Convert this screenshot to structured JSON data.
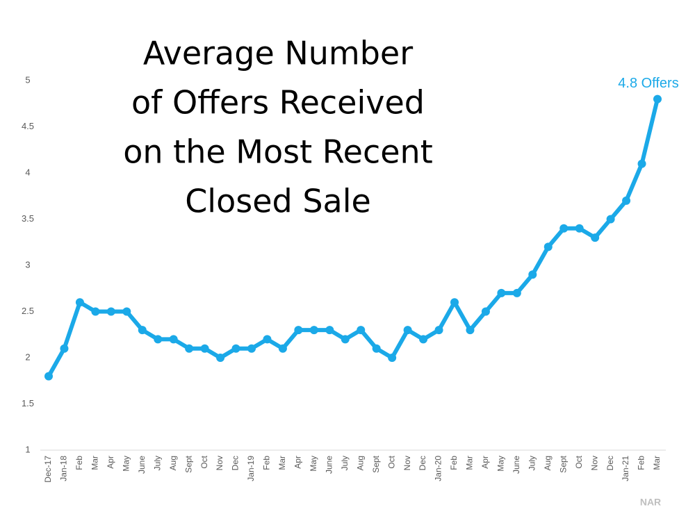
{
  "chart_data": {
    "type": "line",
    "title": [
      "Average Number",
      "of Offers Received",
      "on the Most Recent",
      "Closed Sale"
    ],
    "categories": [
      "Dec-17",
      "Jan-18",
      "Feb",
      "Mar",
      "Apr",
      "May",
      "June",
      "July",
      "Aug",
      "Sept",
      "Oct",
      "Nov",
      "Dec",
      "Jan-19",
      "Feb",
      "Mar",
      "Apr",
      "May",
      "June",
      "July",
      "Aug",
      "Sept",
      "Oct",
      "Nov",
      "Dec",
      "Jan-20",
      "Feb",
      "Mar",
      "Apr",
      "May",
      "June",
      "July",
      "Aug",
      "Sept",
      "Oct",
      "Nov",
      "Dec",
      "Jan-21",
      "Feb",
      "Mar"
    ],
    "series": [
      {
        "name": "Average Number of Offers",
        "color": "#1ba9e8",
        "values": [
          1.8,
          2.1,
          2.6,
          2.5,
          2.5,
          2.5,
          2.3,
          2.2,
          2.2,
          2.1,
          2.1,
          2.0,
          2.1,
          2.1,
          2.2,
          2.1,
          2.3,
          2.3,
          2.3,
          2.2,
          2.3,
          2.1,
          2.0,
          2.3,
          2.2,
          2.3,
          2.6,
          2.3,
          2.5,
          2.7,
          2.7,
          2.9,
          3.2,
          3.4,
          3.4,
          3.3,
          3.5,
          3.7,
          4.1,
          4.8
        ]
      }
    ],
    "ylim": [
      1,
      5
    ],
    "yticks": [
      1,
      1.5,
      2,
      2.5,
      3,
      3.5,
      4,
      4.5,
      5
    ],
    "grid": false,
    "annotations": [
      {
        "text": "4.8 Offers"
      }
    ],
    "source": "NAR"
  }
}
